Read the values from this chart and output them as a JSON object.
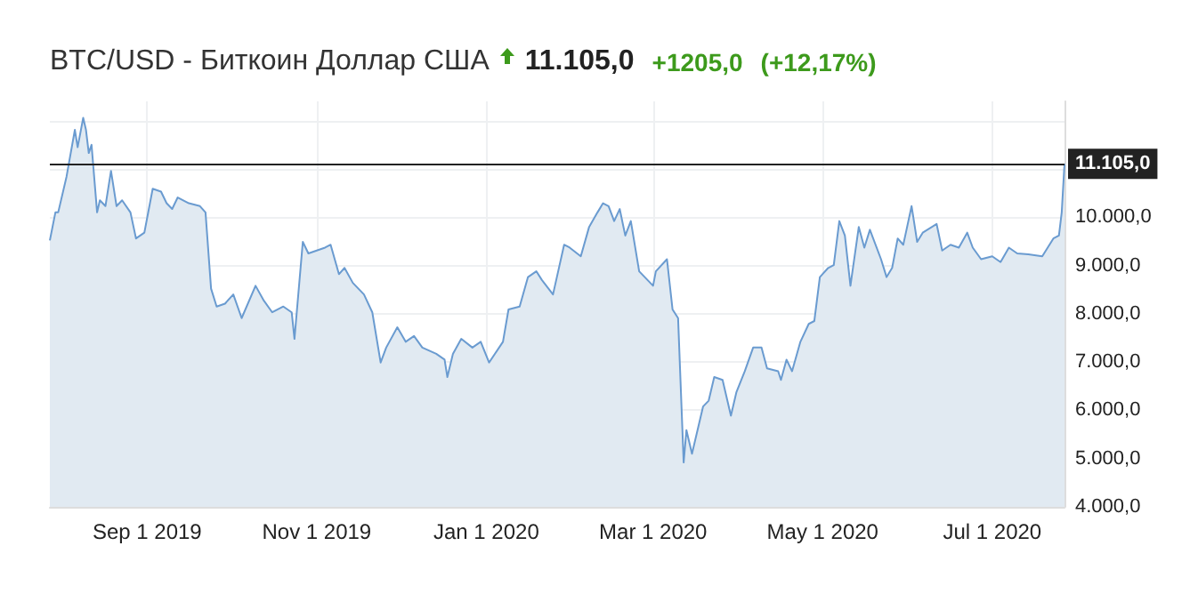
{
  "chart_data": {
    "type": "area",
    "title": "BTC/USD - Биткоин Доллар США",
    "annotations": [
      "11.105,0",
      "+1205,0",
      "(+12,17%)"
    ],
    "x": [
      "2019-07-28",
      "2019-07-30",
      "2019-07-31",
      "2019-08-03",
      "2019-08-06",
      "2019-08-07",
      "2019-08-09",
      "2019-08-10",
      "2019-08-11",
      "2019-08-12",
      "2019-08-14",
      "2019-08-15",
      "2019-08-17",
      "2019-08-19",
      "2019-08-21",
      "2019-08-23",
      "2019-08-26",
      "2019-08-28",
      "2019-08-31",
      "2019-09-03",
      "2019-09-06",
      "2019-09-08",
      "2019-09-10",
      "2019-09-12",
      "2019-09-16",
      "2019-09-20",
      "2019-09-22",
      "2019-09-24",
      "2019-09-26",
      "2019-09-29",
      "2019-10-02",
      "2019-10-05",
      "2019-10-10",
      "2019-10-13",
      "2019-10-16",
      "2019-10-20",
      "2019-10-23",
      "2019-10-24",
      "2019-10-27",
      "2019-10-29",
      "2019-11-01",
      "2019-11-04",
      "2019-11-06",
      "2019-11-09",
      "2019-11-11",
      "2019-11-14",
      "2019-11-18",
      "2019-11-21",
      "2019-11-24",
      "2019-11-26",
      "2019-11-30",
      "2019-12-03",
      "2019-12-06",
      "2019-12-09",
      "2019-12-14",
      "2019-12-17",
      "2019-12-18",
      "2019-12-20",
      "2019-12-23",
      "2019-12-27",
      "2019-12-30",
      "2020-01-02",
      "2020-01-07",
      "2020-01-09",
      "2020-01-13",
      "2020-01-16",
      "2020-01-19",
      "2020-01-21",
      "2020-01-25",
      "2020-01-29",
      "2020-01-31",
      "2020-02-04",
      "2020-02-07",
      "2020-02-10",
      "2020-02-12",
      "2020-02-14",
      "2020-02-16",
      "2020-02-18",
      "2020-02-20",
      "2020-02-22",
      "2020-02-25",
      "2020-03-01",
      "2020-03-02",
      "2020-03-06",
      "2020-03-08",
      "2020-03-10",
      "2020-03-12",
      "2020-03-13",
      "2020-03-15",
      "2020-03-19",
      "2020-03-21",
      "2020-03-23",
      "2020-03-26",
      "2020-03-29",
      "2020-03-31",
      "2020-04-03",
      "2020-04-06",
      "2020-04-09",
      "2020-04-11",
      "2020-04-15",
      "2020-04-16",
      "2020-04-18",
      "2020-04-20",
      "2020-04-23",
      "2020-04-26",
      "2020-04-28",
      "2020-04-30",
      "2020-05-03",
      "2020-05-05",
      "2020-05-07",
      "2020-05-09",
      "2020-05-11",
      "2020-05-14",
      "2020-05-16",
      "2020-05-18",
      "2020-05-22",
      "2020-05-24",
      "2020-05-26",
      "2020-05-28",
      "2020-05-30",
      "2020-06-02",
      "2020-06-04",
      "2020-06-06",
      "2020-06-11",
      "2020-06-13",
      "2020-06-16",
      "2020-06-19",
      "2020-06-22",
      "2020-06-24",
      "2020-06-27",
      "2020-07-01",
      "2020-07-04",
      "2020-07-07",
      "2020-07-10",
      "2020-07-14",
      "2020-07-19",
      "2020-07-23",
      "2020-07-25",
      "2020-07-26",
      "2020-07-27"
    ],
    "series": [
      {
        "color": "#6a9bd0",
        "values": [
          9520,
          10100,
          10100,
          10840,
          11810,
          11450,
          12060,
          11810,
          11330,
          11500,
          10100,
          10350,
          10230,
          10960,
          10230,
          10350,
          10100,
          9560,
          9680,
          10590,
          10530,
          10290,
          10170,
          10410,
          10290,
          10230,
          10100,
          8520,
          8150,
          8210,
          8400,
          7910,
          8580,
          8270,
          8030,
          8150,
          8030,
          7480,
          9490,
          9250,
          9310,
          9370,
          9430,
          8820,
          8950,
          8640,
          8400,
          8030,
          6990,
          7300,
          7720,
          7420,
          7540,
          7300,
          7170,
          7050,
          6690,
          7170,
          7480,
          7300,
          7420,
          6990,
          7420,
          8090,
          8150,
          8760,
          8880,
          8700,
          8400,
          9430,
          9370,
          9190,
          9800,
          10100,
          10290,
          10230,
          9920,
          10170,
          9620,
          9920,
          8880,
          8580,
          8880,
          9130,
          8090,
          7910,
          4920,
          5590,
          5100,
          6080,
          6200,
          6690,
          6630,
          5890,
          6380,
          6810,
          7300,
          7300,
          6870,
          6810,
          6630,
          7050,
          6810,
          7420,
          7790,
          7850,
          8760,
          8950,
          9010,
          9920,
          9620,
          8580,
          9800,
          9370,
          9740,
          9130,
          8760,
          8950,
          9560,
          9430,
          10230,
          9490,
          9680,
          9860,
          9310,
          9430,
          9370,
          9680,
          9370,
          9130,
          9190,
          9070,
          9370,
          9250,
          9230,
          9190,
          9560,
          9620,
          10100,
          11105
        ]
      }
    ],
    "xlim": [
      "2019-07-28",
      "2020-07-27"
    ],
    "xticks": [
      {
        "value": "2019-09-01",
        "label": "Sep 1 2019"
      },
      {
        "value": "2019-11-01",
        "label": "Nov 1 2019"
      },
      {
        "value": "2020-01-01",
        "label": "Jan 1 2020"
      },
      {
        "value": "2020-03-01",
        "label": "Mar 1 2020"
      },
      {
        "value": "2020-05-01",
        "label": "May 1 2020"
      },
      {
        "value": "2020-07-01",
        "label": "Jul 1 2020"
      }
    ],
    "ylim": [
      4000,
      12400
    ],
    "yticks": [
      {
        "value": 4000,
        "label": "4.000,0"
      },
      {
        "value": 5000,
        "label": "5.000,0"
      },
      {
        "value": 6000,
        "label": "6.000,0"
      },
      {
        "value": 7000,
        "label": "7.000,0"
      },
      {
        "value": 8000,
        "label": "8.000,0"
      },
      {
        "value": 9000,
        "label": "9.000,0"
      },
      {
        "value": 10000,
        "label": "10.000,0"
      },
      {
        "value": 11000,
        "label": null
      },
      {
        "value": 12000,
        "label": null
      }
    ],
    "ref_lines": [
      {
        "axis": "y",
        "value": 11105,
        "label": "11.105,0",
        "color": "#222222"
      }
    ],
    "grid": true
  }
}
